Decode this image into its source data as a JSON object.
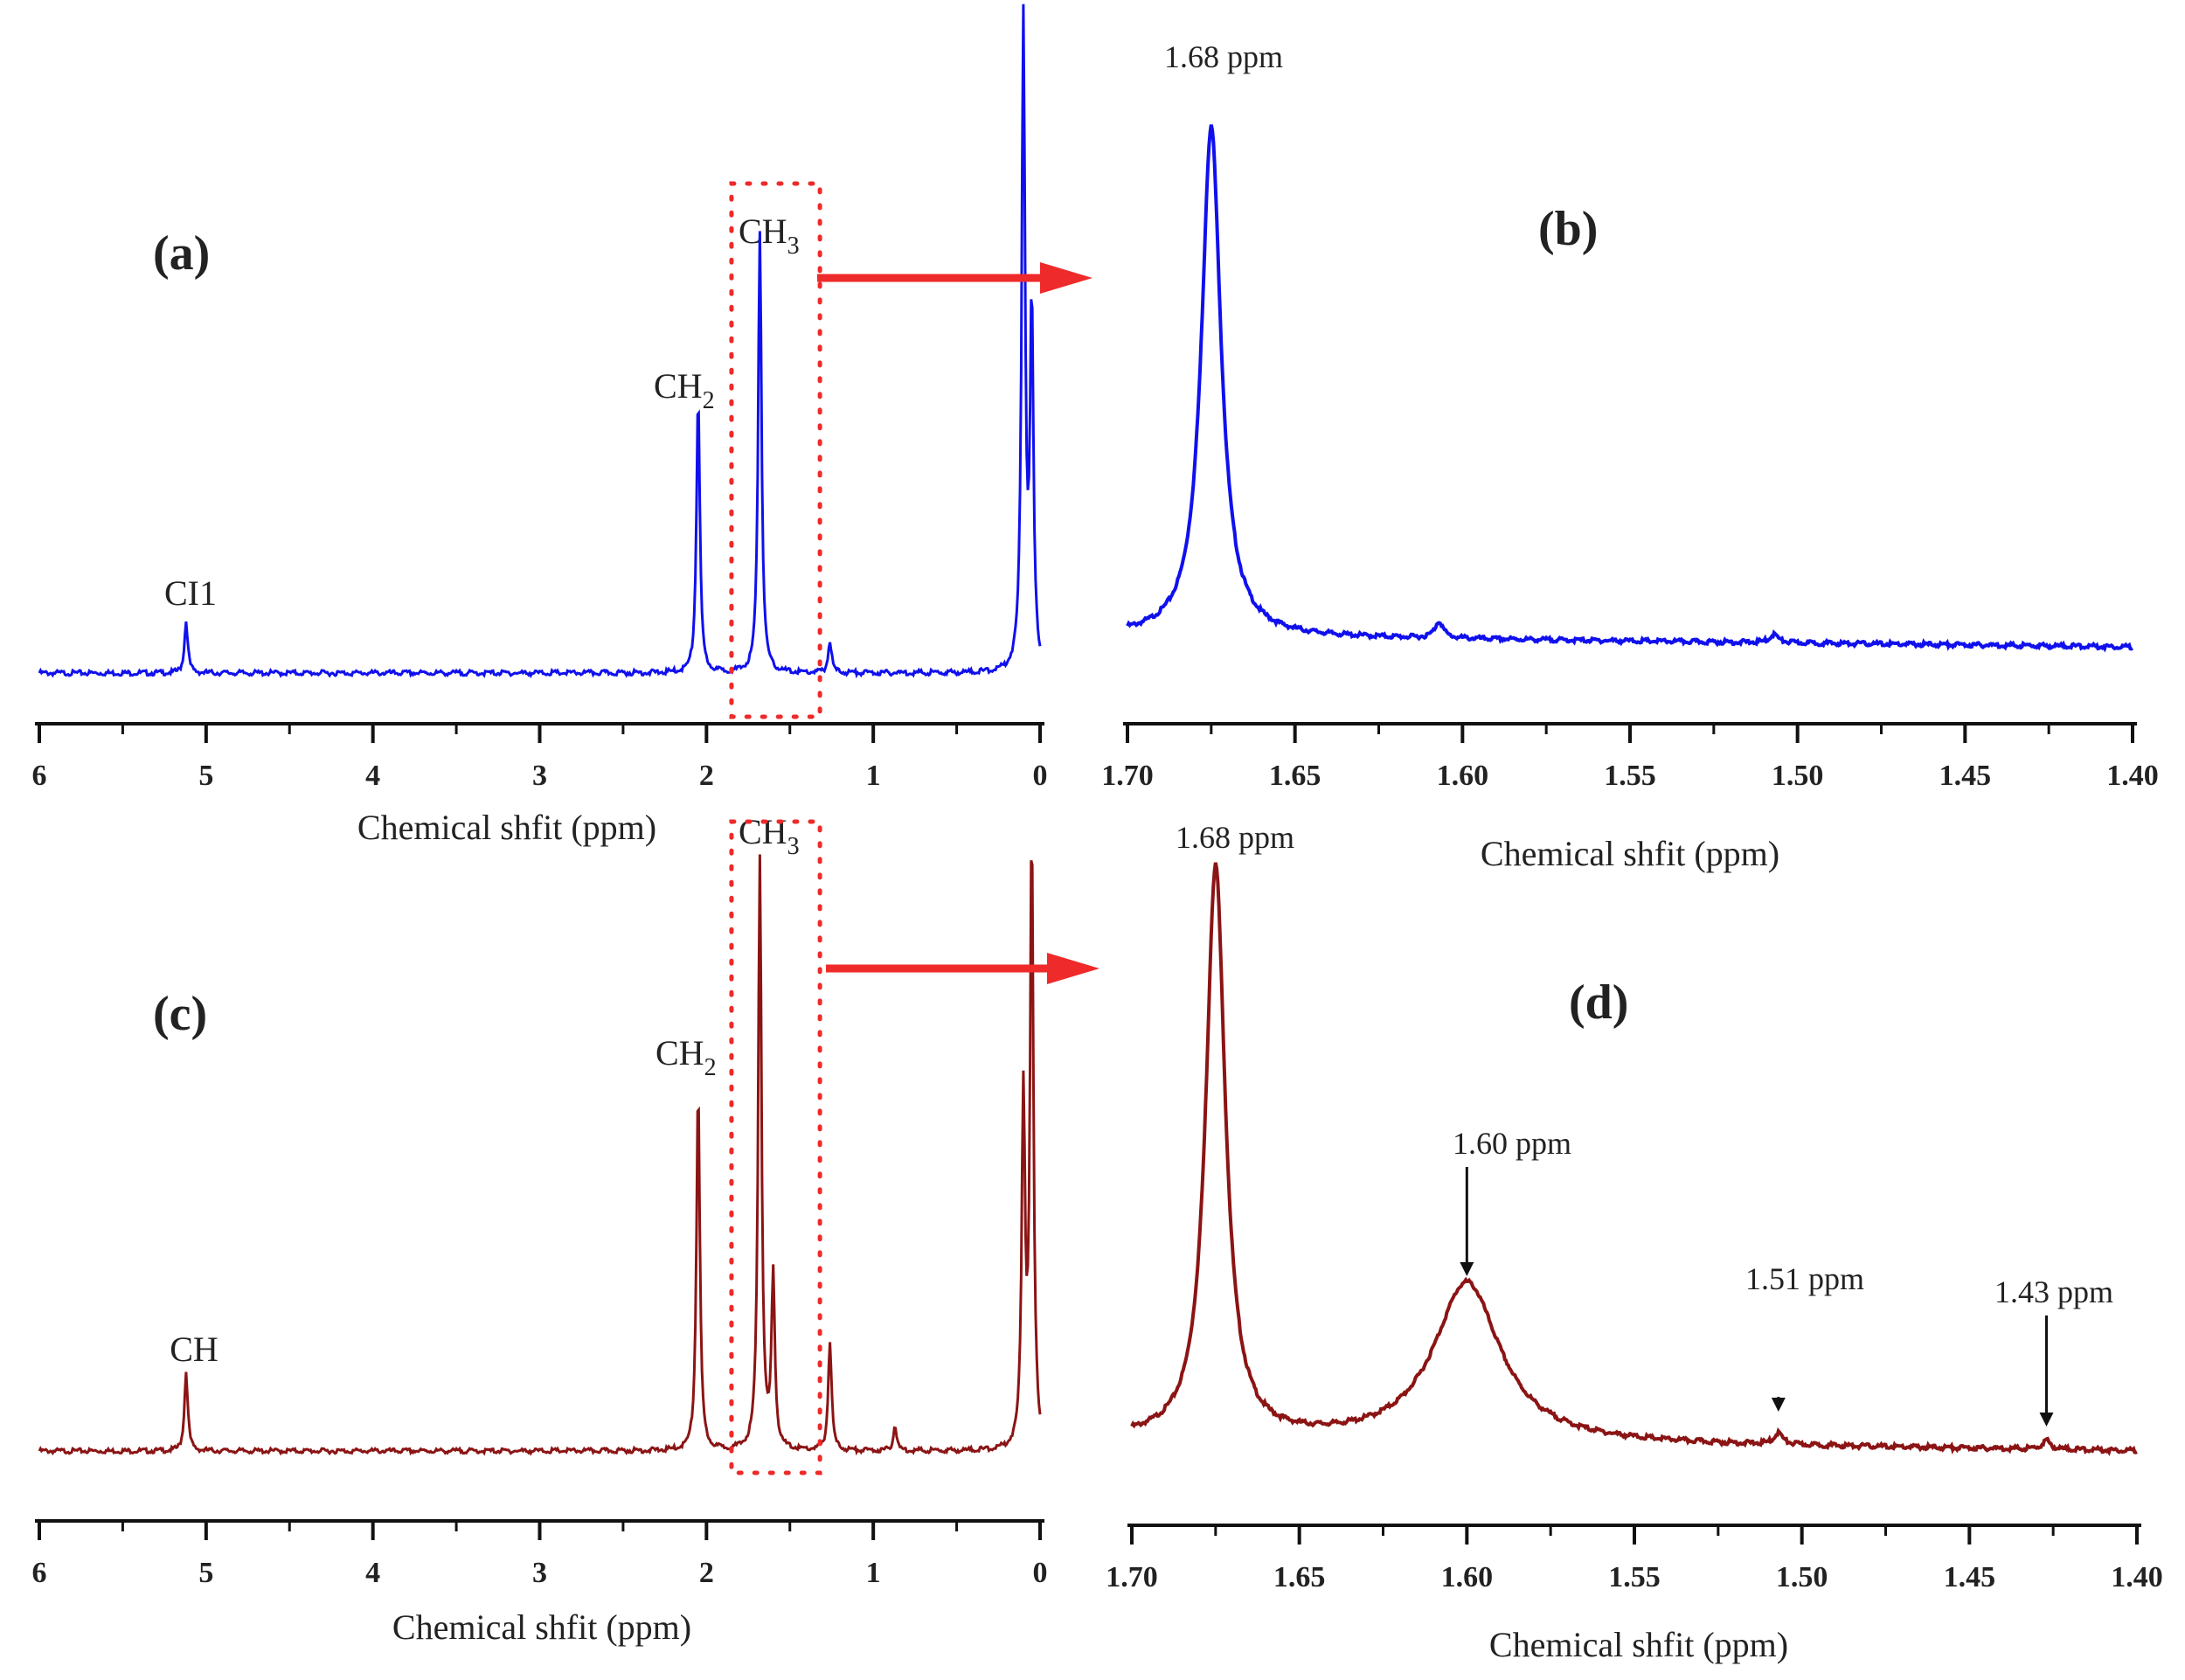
{
  "colors": {
    "series_top": "#1010ee",
    "series_bottom": "#8b1414",
    "highlight": "#ee2a2a",
    "axis": "#111111"
  },
  "chart_data": [
    {
      "panel": "(a)",
      "type": "line",
      "xlabel": "Chemical shfit (ppm)",
      "xlim": [
        6,
        0
      ],
      "xticks": [
        "6",
        "5",
        "4",
        "3",
        "2",
        "1",
        "0"
      ],
      "reversed_x": true,
      "peaks": [
        {
          "x": 5.12,
          "height": 0.08,
          "label": "CH",
          "label_glyph": "CI1"
        },
        {
          "x": 2.05,
          "height": 0.43,
          "label": "CH2"
        },
        {
          "x": 1.68,
          "height": 0.68,
          "label": "CH3"
        },
        {
          "x": 1.26,
          "height": 0.05
        },
        {
          "x": 0.1,
          "height": 1.0
        },
        {
          "x": 0.05,
          "height": 0.55
        }
      ],
      "highlight_range": [
        1.85,
        1.32
      ]
    },
    {
      "panel": "(b)",
      "type": "line",
      "xlabel": "Chemical shfit (ppm)",
      "xlim": [
        1.7,
        1.4
      ],
      "xticks": [
        "1.70",
        "1.65",
        "1.60",
        "1.55",
        "1.50",
        "1.45",
        "1.40"
      ],
      "reversed_x": true,
      "peaks": [
        {
          "x": 1.675,
          "height": 0.92,
          "label": "1.68 ppm"
        },
        {
          "x": 1.607,
          "height": 0.03
        },
        {
          "x": 1.507,
          "height": 0.015
        }
      ]
    },
    {
      "panel": "(c)",
      "type": "line",
      "xlabel": "Chemical shfit (ppm)",
      "xlim": [
        6,
        0
      ],
      "xticks": [
        "6",
        "5",
        "4",
        "3",
        "2",
        "1",
        "0"
      ],
      "reversed_x": true,
      "peaks": [
        {
          "x": 5.12,
          "height": 0.13,
          "label": "CH"
        },
        {
          "x": 2.05,
          "height": 0.6,
          "label": "CH2"
        },
        {
          "x": 1.68,
          "height": 0.97,
          "label": "CH3"
        },
        {
          "x": 1.6,
          "height": 0.28
        },
        {
          "x": 1.26,
          "height": 0.18
        },
        {
          "x": 0.87,
          "height": 0.04
        },
        {
          "x": 0.1,
          "height": 0.57
        },
        {
          "x": 0.05,
          "height": 1.0
        }
      ],
      "highlight_range": [
        1.85,
        1.32
      ]
    },
    {
      "panel": "(d)",
      "type": "line",
      "xlabel": "Chemical shfit (ppm)",
      "xlim": [
        1.7,
        1.4
      ],
      "xticks": [
        "1.70",
        "1.65",
        "1.60",
        "1.55",
        "1.50",
        "1.45",
        "1.40"
      ],
      "reversed_x": true,
      "peaks": [
        {
          "x": 1.675,
          "height": 1.0,
          "label": "1.68 ppm"
        },
        {
          "x": 1.6,
          "height": 0.28,
          "label": "1.60 ppm"
        },
        {
          "x": 1.507,
          "height": 0.02,
          "label": "1.51 ppm"
        },
        {
          "x": 1.427,
          "height": 0.015,
          "label": "1.43 ppm"
        }
      ]
    }
  ]
}
